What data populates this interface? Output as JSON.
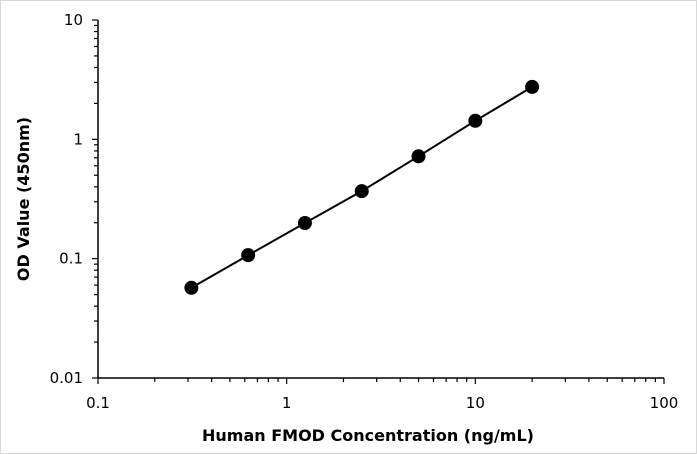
{
  "chart_data": {
    "type": "scatter",
    "title": "",
    "xlabel": "Human FMOD Concentration  (ng/mL)",
    "ylabel": "OD Value (450nm)",
    "x_scale": "log",
    "y_scale": "log",
    "xlim": [
      0.1,
      100
    ],
    "ylim": [
      0.01,
      10
    ],
    "x_ticks": [
      0.1,
      1,
      10,
      100
    ],
    "x_tick_labels": [
      "0.1",
      "1",
      "10",
      "100"
    ],
    "y_ticks": [
      0.01,
      0.1,
      1,
      10
    ],
    "y_tick_labels": [
      "0.01",
      "0.1",
      "1",
      "10"
    ],
    "grid": false,
    "legend": "none",
    "series": [
      {
        "x": [
          0.3125,
          0.625,
          1.25,
          2.5,
          5,
          10,
          20
        ],
        "y": [
          0.057,
          0.107,
          0.199,
          0.368,
          0.721,
          1.43,
          2.75
        ],
        "marker_color": "#000000",
        "line_color": "#000000"
      }
    ]
  }
}
